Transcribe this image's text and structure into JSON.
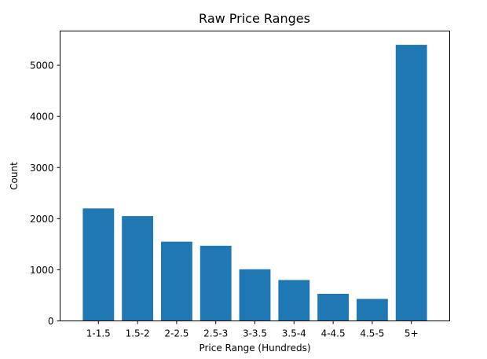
{
  "chart_data": {
    "type": "bar",
    "title": "Raw Price Ranges",
    "xlabel": "Price Range (Hundreds)",
    "ylabel": "Count",
    "categories": [
      "1-1.5",
      "1.5-2",
      "2-2.5",
      "2.5-3",
      "3-3.5",
      "3.5-4",
      "4-4.5",
      "4.5-5",
      "5+"
    ],
    "values": [
      2200,
      2050,
      1550,
      1470,
      1010,
      800,
      530,
      430,
      5400
    ],
    "ylim": [
      0,
      5670
    ],
    "yticks": [
      0,
      1000,
      2000,
      3000,
      4000,
      5000
    ],
    "bar_color": "#1f77b4",
    "grid": false,
    "legend": "none"
  }
}
